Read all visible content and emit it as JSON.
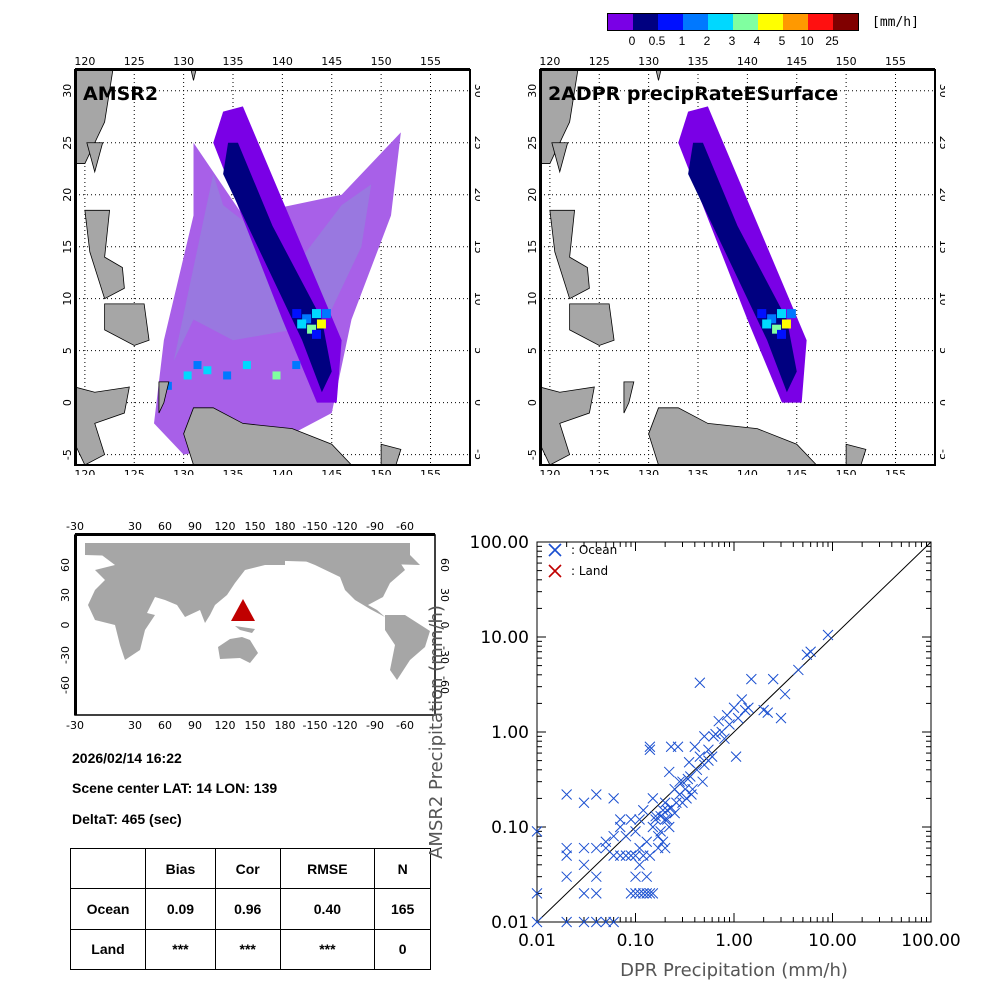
{
  "colorbar": {
    "unit": "[mm/h]",
    "labels": [
      "0",
      "0.5",
      "1",
      "2",
      "3",
      "4",
      "5",
      "10",
      "25"
    ],
    "colors": [
      "#7a00e6",
      "#000080",
      "#0010ff",
      "#0078ff",
      "#00d8ff",
      "#80ffa0",
      "#ffff00",
      "#ff9900",
      "#ff1010",
      "#800000"
    ]
  },
  "maps": [
    {
      "title": "AMSR2",
      "lon_ticks": [
        "120",
        "125",
        "130",
        "135",
        "140",
        "145",
        "150",
        "155"
      ],
      "lat_ticks": [
        "-5",
        "0",
        "5",
        "10",
        "15",
        "20",
        "25",
        "30"
      ],
      "lon_range": [
        119,
        159
      ],
      "lat_range": [
        -6,
        32
      ]
    },
    {
      "title": "2ADPR precipRateESurface",
      "lon_ticks": [
        "120",
        "125",
        "130",
        "135",
        "140",
        "145",
        "150",
        "155"
      ],
      "lat_ticks": [
        "-5",
        "0",
        "5",
        "10",
        "15",
        "20",
        "25",
        "30"
      ],
      "lon_range": [
        119,
        159
      ],
      "lat_range": [
        -6,
        32
      ]
    }
  ],
  "world_map": {
    "lon_ticks": [
      "30",
      "60",
      "90",
      "120",
      "150",
      "180",
      "-150",
      "-120",
      "-90",
      "-60",
      "-30"
    ],
    "lat_ticks": [
      "60",
      "30",
      "0",
      "-30",
      "-60"
    ],
    "marker_lat": 14,
    "marker_lon": 139
  },
  "info": {
    "datetime": "2026/02/14 16:22",
    "scene_center": "Scene center LAT: 14   LON: 139",
    "delta_t": "DeltaT:  465 (sec)"
  },
  "stats_table": {
    "headers": [
      "",
      "Bias",
      "Cor",
      "RMSE",
      "N"
    ],
    "rows": [
      [
        "Ocean",
        "0.09",
        "0.96",
        "0.40",
        "165"
      ],
      [
        "Land",
        "***",
        "***",
        "***",
        "0"
      ]
    ]
  },
  "chart_data": {
    "type": "scatter",
    "scale": "log-log",
    "xlabel": "DPR Precipitation (mm/h)",
    "ylabel": "AMSR2 Precipitation (mm/h)",
    "xlim": [
      0.01,
      100
    ],
    "ylim": [
      0.01,
      100
    ],
    "tick_labels": [
      "0.01",
      "0.10",
      "1.00",
      "10.00",
      "100.00"
    ],
    "legend": [
      {
        "label": ": Ocean",
        "color": "#1a4fd0"
      },
      {
        "label": ": Land",
        "color": "#c00000"
      }
    ],
    "legend_position": "top-left",
    "reference_line": "1:1",
    "series": [
      {
        "name": "Ocean",
        "color": "#1a4fd0",
        "points": [
          [
            0.01,
            0.09
          ],
          [
            0.01,
            0.02
          ],
          [
            0.01,
            0.01
          ],
          [
            0.02,
            0.22
          ],
          [
            0.02,
            0.06
          ],
          [
            0.02,
            0.05
          ],
          [
            0.02,
            0.03
          ],
          [
            0.02,
            0.01
          ],
          [
            0.03,
            0.04
          ],
          [
            0.03,
            0.02
          ],
          [
            0.03,
            0.06
          ],
          [
            0.03,
            0.18
          ],
          [
            0.03,
            0.01
          ],
          [
            0.04,
            0.06
          ],
          [
            0.04,
            0.03
          ],
          [
            0.04,
            0.02
          ],
          [
            0.04,
            0.22
          ],
          [
            0.04,
            0.01
          ],
          [
            0.05,
            0.07
          ],
          [
            0.05,
            0.06
          ],
          [
            0.05,
            0.01
          ],
          [
            0.06,
            0.2
          ],
          [
            0.06,
            0.05
          ],
          [
            0.06,
            0.08
          ],
          [
            0.06,
            0.01
          ],
          [
            0.07,
            0.1
          ],
          [
            0.07,
            0.12
          ],
          [
            0.07,
            0.05
          ],
          [
            0.08,
            0.08
          ],
          [
            0.08,
            0.05
          ],
          [
            0.09,
            0.12
          ],
          [
            0.09,
            0.05
          ],
          [
            0.09,
            0.02
          ],
          [
            0.1,
            0.09
          ],
          [
            0.1,
            0.05
          ],
          [
            0.1,
            0.03
          ],
          [
            0.1,
            0.02
          ],
          [
            0.11,
            0.12
          ],
          [
            0.11,
            0.06
          ],
          [
            0.11,
            0.04
          ],
          [
            0.11,
            0.02
          ],
          [
            0.12,
            0.15
          ],
          [
            0.12,
            0.05
          ],
          [
            0.12,
            0.02
          ],
          [
            0.13,
            0.07
          ],
          [
            0.13,
            0.03
          ],
          [
            0.13,
            0.02
          ],
          [
            0.14,
            0.7
          ],
          [
            0.14,
            0.65
          ],
          [
            0.14,
            0.05
          ],
          [
            0.14,
            0.02
          ],
          [
            0.15,
            0.2
          ],
          [
            0.15,
            0.1
          ],
          [
            0.15,
            0.02
          ],
          [
            0.16,
            0.13
          ],
          [
            0.16,
            0.12
          ],
          [
            0.17,
            0.08
          ],
          [
            0.17,
            0.06
          ],
          [
            0.18,
            0.09
          ],
          [
            0.18,
            0.13
          ],
          [
            0.19,
            0.15
          ],
          [
            0.19,
            0.07
          ],
          [
            0.2,
            0.18
          ],
          [
            0.2,
            0.12
          ],
          [
            0.2,
            0.06
          ],
          [
            0.21,
            0.12
          ],
          [
            0.21,
            0.15
          ],
          [
            0.22,
            0.1
          ],
          [
            0.22,
            0.38
          ],
          [
            0.23,
            0.7
          ],
          [
            0.23,
            0.16
          ],
          [
            0.25,
            0.14
          ],
          [
            0.25,
            0.25
          ],
          [
            0.26,
            0.18
          ],
          [
            0.27,
            0.7
          ],
          [
            0.28,
            0.22
          ],
          [
            0.28,
            0.3
          ],
          [
            0.3,
            0.18
          ],
          [
            0.3,
            0.3
          ],
          [
            0.32,
            0.25
          ],
          [
            0.33,
            0.2
          ],
          [
            0.34,
            0.32
          ],
          [
            0.35,
            0.48
          ],
          [
            0.36,
            0.34
          ],
          [
            0.37,
            0.22
          ],
          [
            0.38,
            0.25
          ],
          [
            0.4,
            0.7
          ],
          [
            0.42,
            0.4
          ],
          [
            0.45,
            0.55
          ],
          [
            0.45,
            3.3
          ],
          [
            0.48,
            0.3
          ],
          [
            0.5,
            0.45
          ],
          [
            0.5,
            0.9
          ],
          [
            0.55,
            0.65
          ],
          [
            0.55,
            0.5
          ],
          [
            0.6,
            0.55
          ],
          [
            0.62,
            0.9
          ],
          [
            0.65,
            0.95
          ],
          [
            0.7,
            1.3
          ],
          [
            0.75,
            1.0
          ],
          [
            0.8,
            0.85
          ],
          [
            0.85,
            1.5
          ],
          [
            0.9,
            1.2
          ],
          [
            1.0,
            1.8
          ],
          [
            1.05,
            0.55
          ],
          [
            1.1,
            1.4
          ],
          [
            1.2,
            2.2
          ],
          [
            1.3,
            1.7
          ],
          [
            1.4,
            1.8
          ],
          [
            1.5,
            3.6
          ],
          [
            2.0,
            1.7
          ],
          [
            2.2,
            1.6
          ],
          [
            2.5,
            3.6
          ],
          [
            3.0,
            1.4
          ],
          [
            3.3,
            2.5
          ],
          [
            4.5,
            4.5
          ],
          [
            5.5,
            6.5
          ],
          [
            6.0,
            7.0
          ],
          [
            9.0,
            10.5
          ]
        ]
      },
      {
        "name": "Land",
        "color": "#c00000",
        "points": []
      }
    ]
  }
}
